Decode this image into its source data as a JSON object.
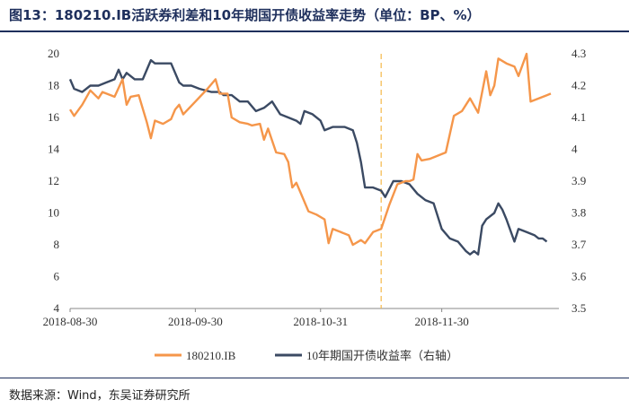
{
  "title": "图13：180210.IB活跃券利差和10年期国开债收益率走势（单位：BP、%）",
  "source": "数据来源：Wind，东吴证券研究所",
  "colors": {
    "spread": "#f5964a",
    "yield": "#3b4a63",
    "marker": "#f5b84a",
    "title": "#1e2f5c"
  },
  "chart_data": {
    "type": "line",
    "x_ticks": [
      {
        "label": "2018-08-30",
        "day": 0
      },
      {
        "label": "2018-09-30",
        "day": 31
      },
      {
        "label": "2018-10-31",
        "day": 62
      },
      {
        "label": "2018-11-30",
        "day": 92
      }
    ],
    "x_range": [
      0,
      121
    ],
    "left_axis": {
      "min": 4,
      "max": 20,
      "ticks": [
        4,
        6,
        8,
        10,
        12,
        14,
        16,
        18,
        20
      ]
    },
    "right_axis": {
      "min": 3.5,
      "max": 4.3,
      "ticks": [
        "3.5",
        "3.6",
        "3.7",
        "3.8",
        "3.9",
        "4",
        "4.1",
        "4.2",
        "4.3"
      ]
    },
    "vline_day": 77,
    "series": [
      {
        "name": "180210.IB",
        "axis": "left",
        "points": [
          [
            0,
            16.5
          ],
          [
            1,
            16.1
          ],
          [
            3,
            16.8
          ],
          [
            5,
            17.7
          ],
          [
            7,
            17.2
          ],
          [
            8,
            17.6
          ],
          [
            11,
            17.3
          ],
          [
            13,
            18.4
          ],
          [
            14,
            16.8
          ],
          [
            15,
            17.3
          ],
          [
            17,
            17.4
          ],
          [
            19,
            15.7
          ],
          [
            20,
            14.7
          ],
          [
            21,
            15.8
          ],
          [
            23,
            15.6
          ],
          [
            25,
            15.9
          ],
          [
            26,
            16.5
          ],
          [
            27,
            16.8
          ],
          [
            28,
            16.2
          ],
          [
            31,
            17.0
          ],
          [
            34,
            17.8
          ],
          [
            36,
            18.4
          ],
          [
            37,
            17.5
          ],
          [
            39,
            17.5
          ],
          [
            40,
            16.0
          ],
          [
            42,
            15.7
          ],
          [
            44,
            15.6
          ],
          [
            45,
            15.5
          ],
          [
            47,
            15.6
          ],
          [
            48,
            14.6
          ],
          [
            49,
            15.3
          ],
          [
            51,
            13.8
          ],
          [
            53,
            13.7
          ],
          [
            54,
            13.2
          ],
          [
            55,
            11.6
          ],
          [
            56,
            11.9
          ],
          [
            57,
            11.3
          ],
          [
            59,
            10.1
          ],
          [
            61,
            9.9
          ],
          [
            63,
            9.6
          ],
          [
            64,
            8.1
          ],
          [
            65,
            9.0
          ],
          [
            67,
            8.8
          ],
          [
            69,
            8.6
          ],
          [
            70,
            8.0
          ],
          [
            72,
            8.3
          ],
          [
            73,
            8.1
          ],
          [
            75,
            8.8
          ],
          [
            77,
            9.0
          ],
          [
            79,
            10.5
          ],
          [
            81,
            11.8
          ],
          [
            82,
            11.9
          ],
          [
            83,
            12.0
          ],
          [
            84,
            12.0
          ],
          [
            85,
            12.1
          ],
          [
            86,
            13.7
          ],
          [
            87,
            13.3
          ],
          [
            89,
            13.4
          ],
          [
            91,
            13.6
          ],
          [
            93,
            13.8
          ],
          [
            95,
            16.1
          ],
          [
            97,
            16.4
          ],
          [
            99,
            17.2
          ],
          [
            101,
            16.3
          ],
          [
            103,
            18.9
          ],
          [
            104,
            17.4
          ],
          [
            105,
            18.0
          ],
          [
            106,
            19.7
          ],
          [
            108,
            19.4
          ],
          [
            110,
            19.2
          ],
          [
            111,
            18.6
          ],
          [
            113,
            20.0
          ],
          [
            114,
            17.0
          ],
          [
            116,
            17.2
          ],
          [
            118,
            17.4
          ],
          [
            119,
            17.5
          ]
        ]
      },
      {
        "name": "10年期国开债收益率（右轴）",
        "axis": "right",
        "points": [
          [
            0,
            4.22
          ],
          [
            1,
            4.19
          ],
          [
            3,
            4.18
          ],
          [
            5,
            4.2
          ],
          [
            7,
            4.2
          ],
          [
            9,
            4.21
          ],
          [
            11,
            4.22
          ],
          [
            12,
            4.25
          ],
          [
            13,
            4.22
          ],
          [
            14,
            4.24
          ],
          [
            16,
            4.22
          ],
          [
            18,
            4.22
          ],
          [
            20,
            4.28
          ],
          [
            21,
            4.27
          ],
          [
            23,
            4.27
          ],
          [
            25,
            4.27
          ],
          [
            27,
            4.21
          ],
          [
            28,
            4.2
          ],
          [
            30,
            4.2
          ],
          [
            32,
            4.19
          ],
          [
            35,
            4.18
          ],
          [
            37,
            4.18
          ],
          [
            38,
            4.17
          ],
          [
            40,
            4.17
          ],
          [
            42,
            4.15
          ],
          [
            44,
            4.15
          ],
          [
            46,
            4.12
          ],
          [
            48,
            4.13
          ],
          [
            50,
            4.15
          ],
          [
            52,
            4.11
          ],
          [
            54,
            4.1
          ],
          [
            56,
            4.09
          ],
          [
            57,
            4.08
          ],
          [
            58,
            4.12
          ],
          [
            60,
            4.11
          ],
          [
            62,
            4.09
          ],
          [
            63,
            4.06
          ],
          [
            65,
            4.07
          ],
          [
            67,
            4.07
          ],
          [
            68,
            4.07
          ],
          [
            70,
            4.06
          ],
          [
            71,
            4.02
          ],
          [
            72,
            3.96
          ],
          [
            73,
            3.88
          ],
          [
            75,
            3.88
          ],
          [
            77,
            3.87
          ],
          [
            78,
            3.85
          ],
          [
            80,
            3.9
          ],
          [
            82,
            3.9
          ],
          [
            84,
            3.89
          ],
          [
            86,
            3.86
          ],
          [
            88,
            3.84
          ],
          [
            90,
            3.83
          ],
          [
            92,
            3.75
          ],
          [
            94,
            3.72
          ],
          [
            96,
            3.71
          ],
          [
            98,
            3.68
          ],
          [
            99,
            3.67
          ],
          [
            100,
            3.68
          ],
          [
            101,
            3.67
          ],
          [
            102,
            3.76
          ],
          [
            103,
            3.78
          ],
          [
            105,
            3.8
          ],
          [
            106,
            3.83
          ],
          [
            107,
            3.81
          ],
          [
            108,
            3.78
          ],
          [
            110,
            3.71
          ],
          [
            111,
            3.75
          ],
          [
            113,
            3.74
          ],
          [
            115,
            3.73
          ],
          [
            116,
            3.72
          ],
          [
            117,
            3.72
          ],
          [
            118,
            3.71
          ]
        ]
      }
    ]
  }
}
